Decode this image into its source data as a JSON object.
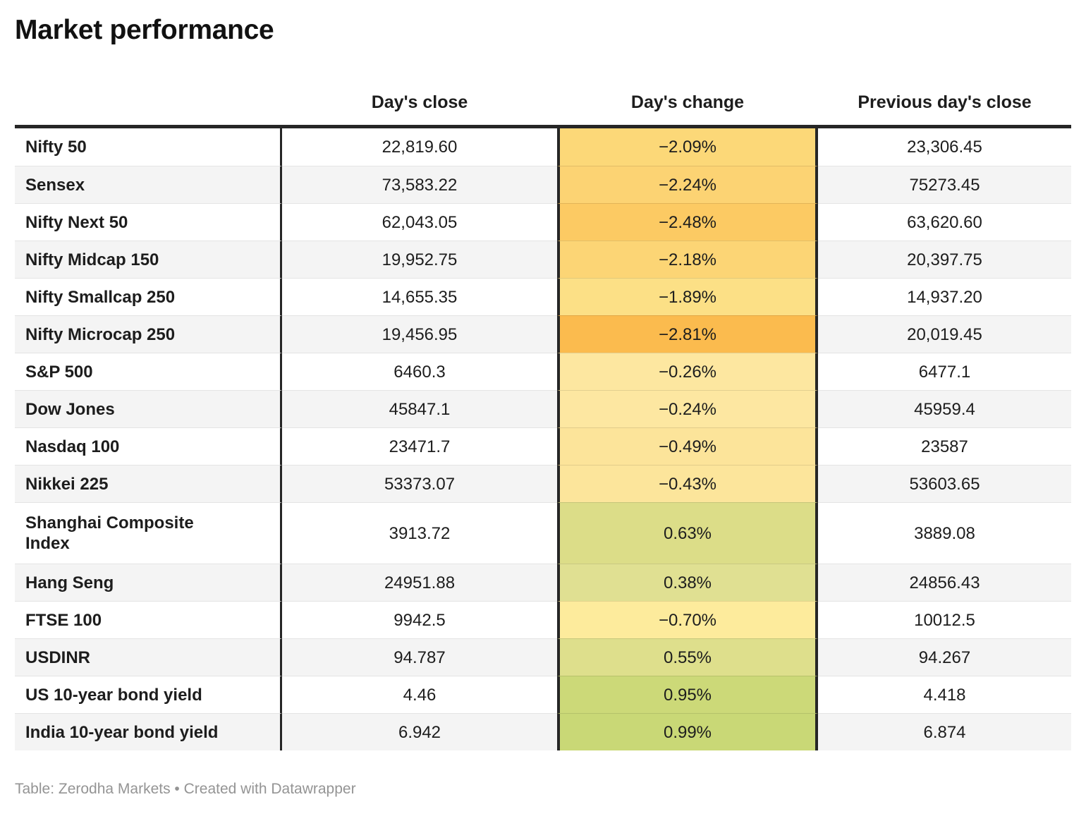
{
  "title": "Market performance",
  "chart_data": {
    "type": "table",
    "title": "Market performance",
    "columns": [
      "",
      "Day's close",
      "Day's change",
      "Previous day's close"
    ],
    "rows": [
      {
        "label": "Nifty 50",
        "close": "22,819.60",
        "change": "−2.09%",
        "change_value": -2.09,
        "prev": "23,306.45",
        "change_color": "#fcd878"
      },
      {
        "label": "Sensex",
        "close": "73,583.22",
        "change": "−2.24%",
        "change_value": -2.24,
        "prev": "75273.45",
        "change_color": "#fcd373"
      },
      {
        "label": "Nifty Next 50",
        "close": "62,043.05",
        "change": "−2.48%",
        "change_value": -2.48,
        "prev": "63,620.60",
        "change_color": "#fcca63"
      },
      {
        "label": "Nifty Midcap 150",
        "close": "19,952.75",
        "change": "−2.18%",
        "change_value": -2.18,
        "prev": "20,397.75",
        "change_color": "#fcd575"
      },
      {
        "label": "Nifty Smallcap 250",
        "close": "14,655.35",
        "change": "−1.89%",
        "change_value": -1.89,
        "prev": "14,937.20",
        "change_color": "#fce086"
      },
      {
        "label": "Nifty Microcap 250",
        "close": "19,456.95",
        "change": "−2.81%",
        "change_value": -2.81,
        "prev": "20,019.45",
        "change_color": "#fbbb4e"
      },
      {
        "label": "S&P 500",
        "close": "6460.3",
        "change": "−0.26%",
        "change_value": -0.26,
        "prev": "6477.1",
        "change_color": "#fde7a0"
      },
      {
        "label": "Dow Jones",
        "close": "45847.1",
        "change": "−0.24%",
        "change_value": -0.24,
        "prev": "45959.4",
        "change_color": "#fde7a1"
      },
      {
        "label": "Nasdaq 100",
        "close": "23471.7",
        "change": "−0.49%",
        "change_value": -0.49,
        "prev": "23587",
        "change_color": "#fce49a"
      },
      {
        "label": "Nikkei 225",
        "close": "53373.07",
        "change": "−0.43%",
        "change_value": -0.43,
        "prev": "53603.65",
        "change_color": "#fce59b"
      },
      {
        "label": "Shanghai Composite Index",
        "close": "3913.72",
        "change": "0.63%",
        "change_value": 0.63,
        "prev": "3889.08",
        "change_color": "#dcdd88"
      },
      {
        "label": "Hang Seng",
        "close": "24951.88",
        "change": "0.38%",
        "change_value": 0.38,
        "prev": "24856.43",
        "change_color": "#e0e092"
      },
      {
        "label": "FTSE 100",
        "close": "9942.5",
        "change": "−0.70%",
        "change_value": -0.7,
        "prev": "10012.5",
        "change_color": "#fdeb9c"
      },
      {
        "label": "USDINR",
        "close": "94.787",
        "change": "0.55%",
        "change_value": 0.55,
        "prev": "94.267",
        "change_color": "#dedf8c"
      },
      {
        "label": "US 10-year bond yield",
        "close": "4.46",
        "change": "0.95%",
        "change_value": 0.95,
        "prev": "4.418",
        "change_color": "#ccd978"
      },
      {
        "label": "India 10-year bond yield",
        "close": "6.942",
        "change": "0.99%",
        "change_value": 0.99,
        "prev": "6.874",
        "change_color": "#c9d876"
      }
    ],
    "heatmap_colors": {
      "most_negative": "#fbbb4e",
      "near_zero": "#fdeca6",
      "most_positive": "#c9d876"
    },
    "layout": {
      "grid": "row-stripes",
      "legend": "none",
      "change_column_alignment": "center"
    }
  },
  "footer": {
    "credit": "Table: Zerodha Markets • Created with Datawrapper"
  }
}
